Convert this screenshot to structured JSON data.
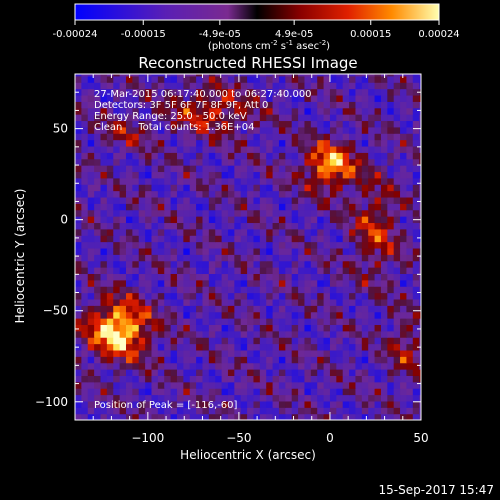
{
  "chart_data": {
    "type": "heatmap",
    "title": "Reconstructed RHESSI Image",
    "xlabel": "Heliocentric X (arcsec)",
    "ylabel": "Heliocentric Y (arcsec)",
    "xlim": [
      -140,
      50
    ],
    "ylim": [
      -110,
      80
    ],
    "xticks": [
      -100,
      -50,
      0,
      50
    ],
    "yticks": [
      -100,
      -50,
      0,
      50
    ],
    "colorbar": {
      "range": [
        -0.00024,
        0.00024
      ],
      "tick_values": [
        -0.00024,
        -0.00015,
        -4.9e-05,
        4.9e-05,
        0.00015,
        0.00024
      ],
      "tick_labels": [
        "-0.00024",
        "-0.00015",
        "-4.9e-05",
        "4.9e-05",
        "0.00015",
        "0.00024"
      ],
      "units_label": "(photons cm",
      "units_parts": [
        "-2",
        " s",
        "-1",
        " asec",
        "-2",
        ")"
      ]
    },
    "annotations": [
      "27-Mar-2015 06:17:40.000 to 06:27:40.000",
      "Detectors: 3F 5F 6F 7F 8F 9F, Att 0",
      "Energy Range: 25.0 - 50.0 keV",
      "Clean     Total counts: 1.36E+04"
    ],
    "peak_label": "Position of Peak = [-116,-60]",
    "peak": [
      -116,
      -60
    ],
    "sources": [
      {
        "x": -116,
        "y": -60,
        "sx": 12,
        "sy": 11,
        "amp": 1.0
      },
      {
        "x": 0,
        "y": 30,
        "sx": 10,
        "sy": 9,
        "amp": 0.82
      },
      {
        "x": -65,
        "y": 60,
        "sx": 16,
        "sy": 9,
        "amp": 0.5
      },
      {
        "x": 25,
        "y": -5,
        "sx": 9,
        "sy": 18,
        "amp": 0.45
      },
      {
        "x": -112,
        "y": 48,
        "sx": 10,
        "sy": 6,
        "amp": 0.3
      },
      {
        "x": 42,
        "y": -70,
        "sx": 7,
        "sy": 12,
        "amp": 0.35
      }
    ],
    "grid": false
  },
  "footer": {
    "timestamp": "15-Sep-2017 15:47"
  }
}
